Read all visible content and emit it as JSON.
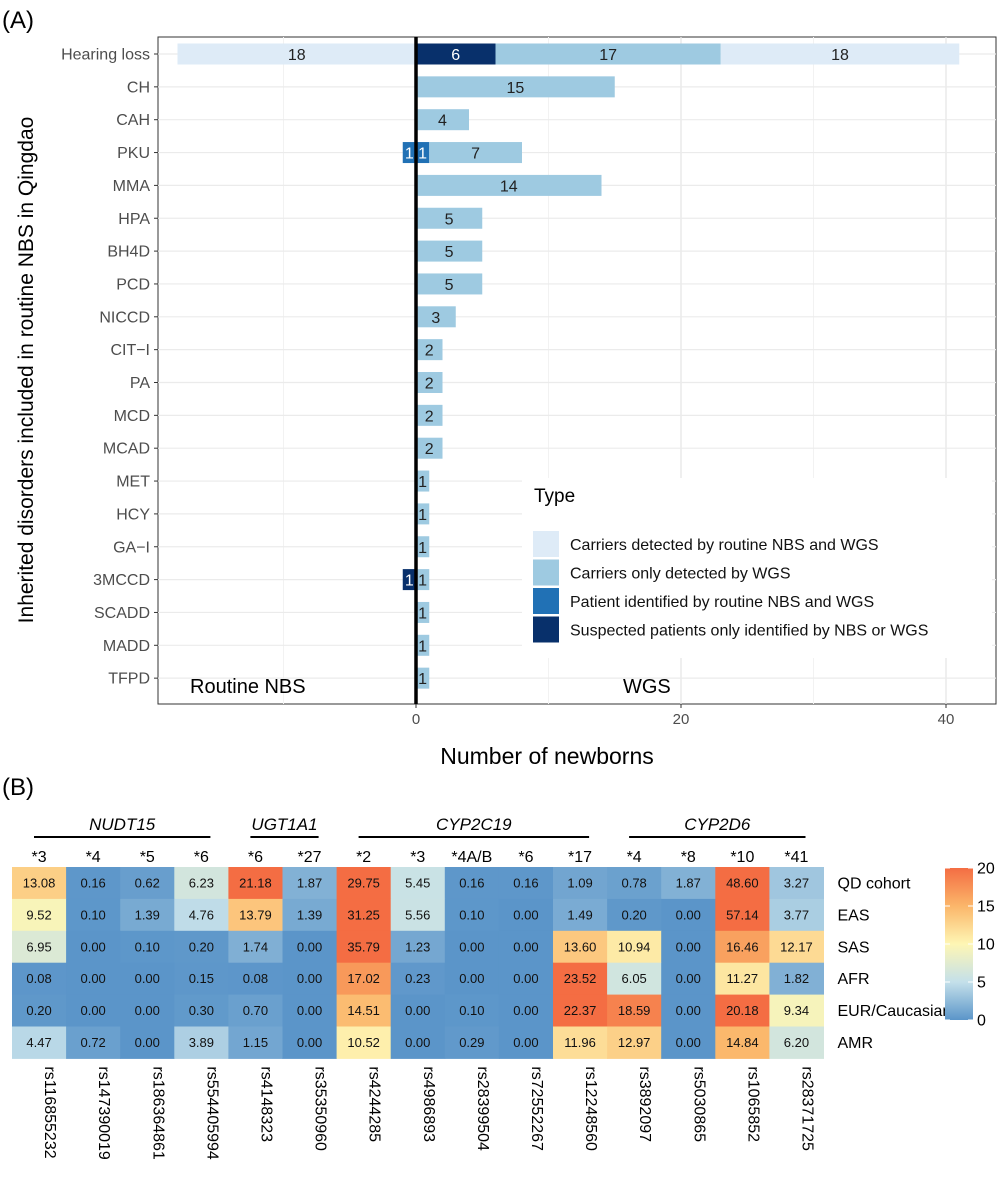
{
  "chart_data": [
    {
      "panel_label": "(A)",
      "type": "bar",
      "orientation": "horizontal",
      "stacked": true,
      "xlabel": "Number of newborns",
      "ylabel": "Inherited disorders included in routine NBS in Qingdao",
      "xlim": [
        -17,
        43
      ],
      "xticks": [
        0,
        20,
        40
      ],
      "grid": true,
      "region_labels": [
        "Routine NBS",
        "WGS"
      ],
      "legend": {
        "title": "Type",
        "placement": "bottom-right",
        "entries": [
          {
            "name": "Carriers detected by routine NBS and WGS",
            "color": "#deebf7"
          },
          {
            "name": "Carriers only detected by WGS",
            "color": "#9ecae1"
          },
          {
            "name": "Patient identified by routine NBS and WGS",
            "color": "#2171b5"
          },
          {
            "name": "Suspected patients only identified by NBS or WGS",
            "color": "#08306b"
          }
        ]
      },
      "categories": [
        "Hearing loss",
        "CH",
        "CAH",
        "PKU",
        "MMA",
        "HPA",
        "BH4D",
        "PCD",
        "NICCD",
        "CIT−I",
        "PA",
        "MCD",
        "MCAD",
        "MET",
        "HCY",
        "GA−I",
        "3MCCD",
        "SCADD",
        "MADD",
        "TFPD"
      ],
      "bars": [
        {
          "category": "Hearing loss",
          "segments": [
            {
              "side": "Routine NBS",
              "type": 0,
              "value": 18,
              "label": "18"
            },
            {
              "side": "WGS",
              "type": 3,
              "value": 6,
              "label": "6"
            },
            {
              "side": "WGS",
              "type": 1,
              "value": 17,
              "label": "17"
            },
            {
              "side": "WGS",
              "type": 0,
              "value": 18,
              "label": "18"
            }
          ]
        },
        {
          "category": "CH",
          "segments": [
            {
              "side": "WGS",
              "type": 1,
              "value": 15,
              "label": "15"
            }
          ]
        },
        {
          "category": "CAH",
          "segments": [
            {
              "side": "WGS",
              "type": 1,
              "value": 4,
              "label": "4"
            }
          ]
        },
        {
          "category": "PKU",
          "segments": [
            {
              "side": "Routine NBS",
              "type": 2,
              "value": 1,
              "label": "1"
            },
            {
              "side": "WGS",
              "type": 2,
              "value": 1,
              "label": "1"
            },
            {
              "side": "WGS",
              "type": 1,
              "value": 7,
              "label": "7"
            }
          ]
        },
        {
          "category": "MMA",
          "segments": [
            {
              "side": "WGS",
              "type": 1,
              "value": 14,
              "label": "14"
            }
          ]
        },
        {
          "category": "HPA",
          "segments": [
            {
              "side": "WGS",
              "type": 1,
              "value": 5,
              "label": "5"
            }
          ]
        },
        {
          "category": "BH4D",
          "segments": [
            {
              "side": "WGS",
              "type": 1,
              "value": 5,
              "label": "5"
            }
          ]
        },
        {
          "category": "PCD",
          "segments": [
            {
              "side": "WGS",
              "type": 1,
              "value": 5,
              "label": "5"
            }
          ]
        },
        {
          "category": "NICCD",
          "segments": [
            {
              "side": "WGS",
              "type": 1,
              "value": 3,
              "label": "3"
            }
          ]
        },
        {
          "category": "CIT−I",
          "segments": [
            {
              "side": "WGS",
              "type": 1,
              "value": 2,
              "label": "2"
            }
          ]
        },
        {
          "category": "PA",
          "segments": [
            {
              "side": "WGS",
              "type": 1,
              "value": 2,
              "label": "2"
            }
          ]
        },
        {
          "category": "MCD",
          "segments": [
            {
              "side": "WGS",
              "type": 1,
              "value": 2,
              "label": "2"
            }
          ]
        },
        {
          "category": "MCAD",
          "segments": [
            {
              "side": "WGS",
              "type": 1,
              "value": 2,
              "label": "2"
            }
          ]
        },
        {
          "category": "MET",
          "segments": [
            {
              "side": "WGS",
              "type": 1,
              "value": 1,
              "label": "1"
            }
          ]
        },
        {
          "category": "HCY",
          "segments": [
            {
              "side": "WGS",
              "type": 1,
              "value": 1,
              "label": "1"
            }
          ]
        },
        {
          "category": "GA−I",
          "segments": [
            {
              "side": "WGS",
              "type": 1,
              "value": 1,
              "label": "1"
            }
          ]
        },
        {
          "category": "3MCCD",
          "segments": [
            {
              "side": "Routine NBS",
              "type": 3,
              "value": 1,
              "label": "1"
            },
            {
              "side": "WGS",
              "type": 1,
              "value": 1,
              "label": "1"
            }
          ]
        },
        {
          "category": "SCADD",
          "segments": [
            {
              "side": "WGS",
              "type": 1,
              "value": 1,
              "label": "1"
            }
          ]
        },
        {
          "category": "MADD",
          "segments": [
            {
              "side": "WGS",
              "type": 1,
              "value": 1,
              "label": "1"
            }
          ]
        },
        {
          "category": "TFPD",
          "segments": [
            {
              "side": "WGS",
              "type": 1,
              "value": 1,
              "label": "1"
            }
          ]
        }
      ]
    },
    {
      "panel_label": "(B)",
      "type": "heatmap",
      "genes": [
        {
          "name": "NUDT15",
          "cols": [
            0,
            3
          ]
        },
        {
          "name": "UGT1A1",
          "cols": [
            4,
            5
          ]
        },
        {
          "name": "CYP2C19",
          "cols": [
            6,
            10
          ]
        },
        {
          "name": "CYP2D6",
          "cols": [
            11,
            14
          ]
        }
      ],
      "alleles": [
        "*3",
        "*4",
        "*5",
        "*6",
        "*6",
        "*27",
        "*2",
        "*3",
        "*4A/B",
        "*6",
        "*17",
        "*4",
        "*8",
        "*10",
        "*41"
      ],
      "snps": [
        "rs116855232",
        "rs147390019",
        "rs186364861",
        "rs554405994",
        "rs4148323",
        "rs35350960",
        "rs4244285",
        "rs4986893",
        "rs28399504",
        "rs72552267",
        "rs12248560",
        "rs3892097",
        "rs5030865",
        "rs1065852",
        "rs28371725"
      ],
      "rows": [
        "QD cohort",
        "EAS",
        "SAS",
        "AFR",
        "EUR/Caucasian",
        "AMR"
      ],
      "values": [
        [
          "13.08",
          "0.16",
          "0.62",
          "6.23",
          "21.18",
          "1.87",
          "29.75",
          "5.45",
          "0.16",
          "0.16",
          "1.09",
          "0.78",
          "1.87",
          "48.60",
          "3.27"
        ],
        [
          "9.52",
          "0.10",
          "1.39",
          "4.76",
          "13.79",
          "1.39",
          "31.25",
          "5.56",
          "0.10",
          "0.00",
          "1.49",
          "0.20",
          "0.00",
          "57.14",
          "3.77"
        ],
        [
          "6.95",
          "0.00",
          "0.10",
          "0.20",
          "1.74",
          "0.00",
          "35.79",
          "1.23",
          "0.00",
          "0.00",
          "13.60",
          "10.94",
          "0.00",
          "16.46",
          "12.17"
        ],
        [
          "0.08",
          "0.00",
          "0.00",
          "0.15",
          "0.08",
          "0.00",
          "17.02",
          "0.23",
          "0.00",
          "0.00",
          "23.52",
          "6.05",
          "0.00",
          "11.27",
          "1.82"
        ],
        [
          "0.20",
          "0.00",
          "0.00",
          "0.30",
          "0.70",
          "0.00",
          "14.51",
          "0.00",
          "0.10",
          "0.00",
          "22.37",
          "18.59",
          "0.00",
          "20.18",
          "9.34"
        ],
        [
          "4.47",
          "0.72",
          "0.00",
          "3.89",
          "1.15",
          "0.00",
          "10.52",
          "0.00",
          "0.29",
          "0.00",
          "11.96",
          "12.97",
          "0.00",
          "14.84",
          "6.20"
        ]
      ],
      "color_scale": {
        "min": 0,
        "max": 20,
        "ticks": [
          0,
          5,
          10,
          15,
          20
        ],
        "stops": [
          {
            "v": 0,
            "color": "#5b95c9"
          },
          {
            "v": 5,
            "color": "#c4e0ea"
          },
          {
            "v": 10,
            "color": "#fef6b4"
          },
          {
            "v": 15,
            "color": "#fbb66a"
          },
          {
            "v": 20,
            "color": "#f46d43"
          }
        ]
      }
    }
  ]
}
